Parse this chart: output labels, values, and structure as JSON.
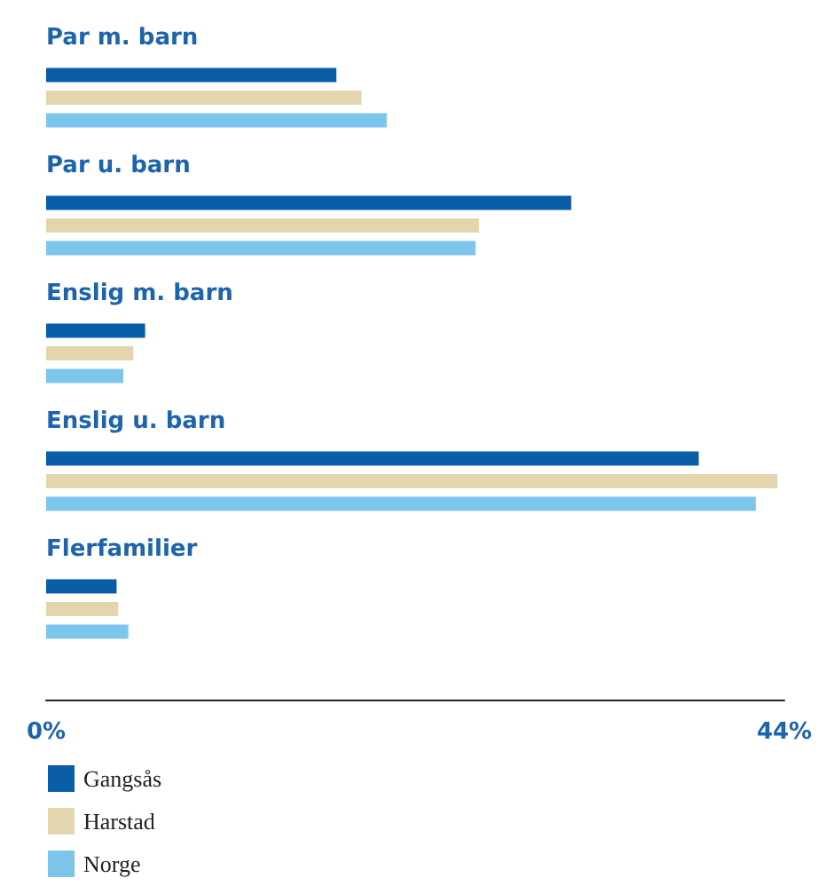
{
  "chart_data": {
    "type": "bar",
    "orientation": "horizontal",
    "categories": [
      "Par m. barn",
      "Par u. barn",
      "Enslig m. barn",
      "Enslig u. barn",
      "Flerfamilier"
    ],
    "series": [
      {
        "name": "Gangsås",
        "color": "#0a5ea8",
        "values": [
          17.3,
          31.3,
          5.9,
          38.9,
          4.2
        ]
      },
      {
        "name": "Harstad",
        "color": "#e3d6ae",
        "values": [
          18.8,
          25.8,
          5.2,
          43.6,
          4.3
        ]
      },
      {
        "name": "Norge",
        "color": "#7dc5ea",
        "values": [
          20.3,
          25.6,
          4.6,
          42.3,
          4.9
        ]
      }
    ],
    "xlim": [
      0,
      44
    ],
    "xticks": [
      {
        "value": 0,
        "label": "0%"
      },
      {
        "value": 44,
        "label": "44%"
      }
    ],
    "grid": false,
    "legend": "bottom"
  }
}
